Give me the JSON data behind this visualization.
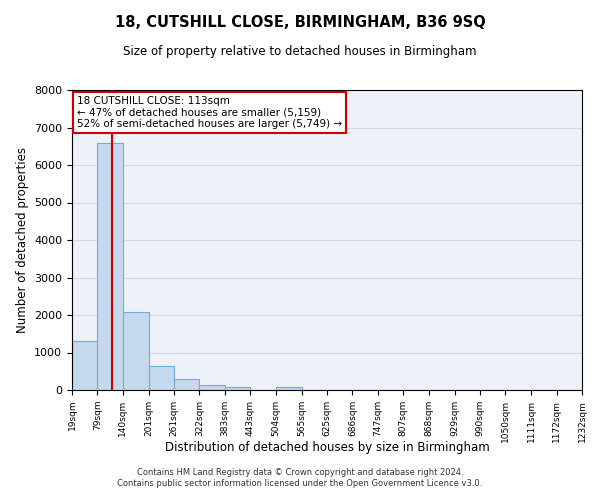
{
  "title": "18, CUTSHILL CLOSE, BIRMINGHAM, B36 9SQ",
  "subtitle": "Size of property relative to detached houses in Birmingham",
  "xlabel": "Distribution of detached houses by size in Birmingham",
  "ylabel": "Number of detached properties",
  "bin_edges": [
    19,
    79,
    140,
    201,
    261,
    322,
    383,
    443,
    504,
    565,
    625,
    686,
    747,
    807,
    868,
    929,
    990,
    1050,
    1111,
    1172,
    1232
  ],
  "bin_heights": [
    1300,
    6580,
    2070,
    650,
    290,
    130,
    80,
    0,
    85,
    0,
    0,
    0,
    0,
    0,
    0,
    0,
    0,
    0,
    0,
    0
  ],
  "bar_color": "#c5d8ee",
  "bar_edge_color": "#6baed6",
  "vline_color": "#cc0000",
  "vline_x": 113,
  "annotation_title": "18 CUTSHILL CLOSE: 113sqm",
  "annotation_line1": "← 47% of detached houses are smaller (5,159)",
  "annotation_line2": "52% of semi-detached houses are larger (5,749) →",
  "annotation_box_facecolor": "#ffffff",
  "annotation_box_edgecolor": "#cc0000",
  "ylim": [
    0,
    8000
  ],
  "yticks": [
    0,
    1000,
    2000,
    3000,
    4000,
    5000,
    6000,
    7000,
    8000
  ],
  "grid_color": "#d0d8e8",
  "bg_color": "#edf2f9",
  "tick_labels": [
    "19sqm",
    "79sqm",
    "140sqm",
    "201sqm",
    "261sqm",
    "322sqm",
    "383sqm",
    "443sqm",
    "504sqm",
    "565sqm",
    "625sqm",
    "686sqm",
    "747sqm",
    "807sqm",
    "868sqm",
    "929sqm",
    "990sqm",
    "1050sqm",
    "1111sqm",
    "1172sqm",
    "1232sqm"
  ],
  "footnote1": "Contains HM Land Registry data © Crown copyright and database right 2024.",
  "footnote2": "Contains public sector information licensed under the Open Government Licence v3.0."
}
